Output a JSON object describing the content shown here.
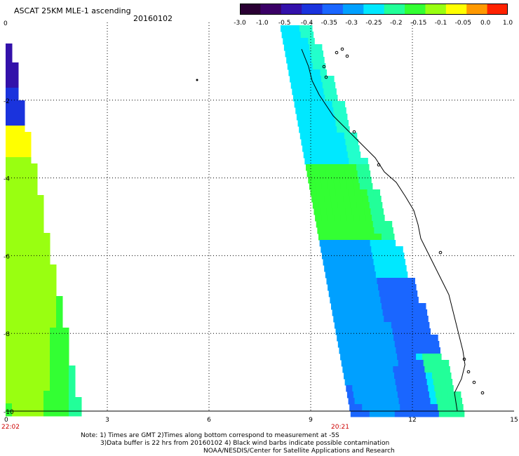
{
  "header": {
    "title": "ASCAT 25KM MLE-1 ascending",
    "date": "20160102"
  },
  "colorbar": {
    "tick_labels": [
      "-3.0",
      "-1.0",
      "-0.5",
      "-0.4",
      "-0.35",
      "-0.3",
      "-0.25",
      "-0.2",
      "-0.15",
      "-0.1",
      "-0.05",
      "0.0",
      "1.0"
    ],
    "colors": [
      "#2a0033",
      "#3a0066",
      "#3311aa",
      "#1a33dd",
      "#1a66ff",
      "#00a0ff",
      "#00e8ff",
      "#22ff99",
      "#33ff33",
      "#99ff11",
      "#ffff00",
      "#ff9900",
      "#ff2200"
    ]
  },
  "map": {
    "y_axis_labels": [
      "0",
      "-2",
      "-4",
      "-6",
      "-8",
      "-10"
    ],
    "x_axis_labels": [
      "0",
      "3",
      "6",
      "9",
      "12",
      "15"
    ],
    "time_labels": [
      "22:02",
      "20:21"
    ],
    "time_label_color": "#cc0000",
    "grid": true,
    "grid_style": "dotted"
  },
  "notes": {
    "line1": "Note: 1) Times are GMT 2)Times along bottom correspond to measurement at -5S",
    "line2": "3)Data buffer is 22 hrs from 20160102 4) Black wind barbs indicate possible contamination",
    "line3": "NOAA/NESDIS/Center for Satellite Applications and Research"
  }
}
